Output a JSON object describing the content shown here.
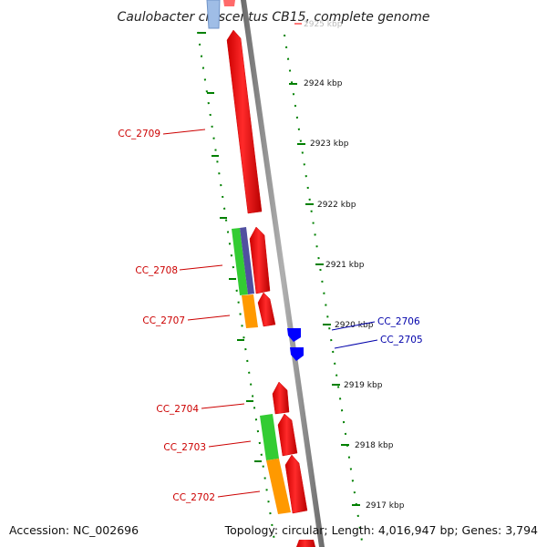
{
  "title": "Caulobacter crescentus CB15, complete genome",
  "footer": {
    "accession": "Accession: NC_002696",
    "stats": "Topology: circular; Length: 4,016,947 bp; Genes: 3,794"
  },
  "colors": {
    "forward_cds": "#ff0000",
    "reverse_cds": "#0000ff",
    "backbone": "#808080",
    "gc_track": "#008000",
    "label_forward": "#cc0000",
    "label_reverse": "#0000aa",
    "cog_green": "#33cc33",
    "cog_orange": "#ff9900",
    "cog_purple": "#5050a0",
    "cog_lightblue": "#7aa0d8"
  },
  "scale_ticks": [
    "2924 kbp",
    "2923 kbp",
    "2922 kbp",
    "2921 kbp",
    "2920 kbp",
    "2919 kbp",
    "2918 kbp",
    "2917 kbp"
  ],
  "faded_tick": "2925 kbp",
  "gene_labels": {
    "left": [
      "CC_2709",
      "CC_2708",
      "CC_2707",
      "CC_2704",
      "CC_2703",
      "CC_2702"
    ],
    "right": [
      "CC_2706",
      "CC_2705"
    ]
  }
}
